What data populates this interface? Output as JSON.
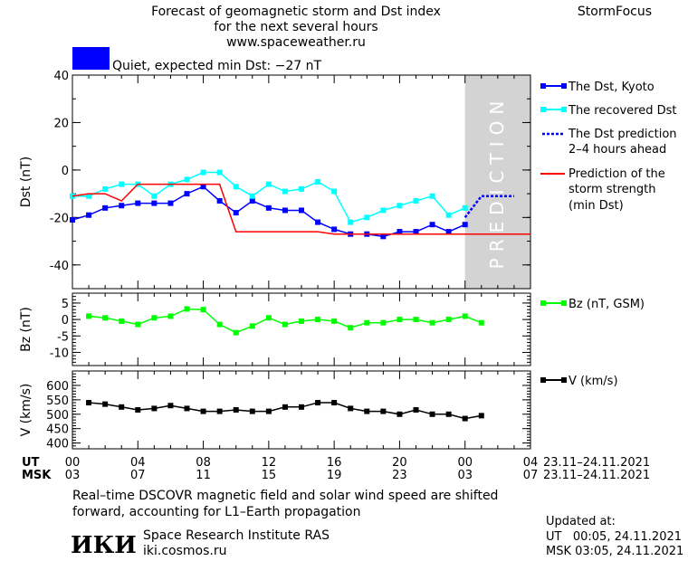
{
  "header": {
    "title_lines": [
      "Forecast of geomagnetic storm and Dst index",
      "for the next several hours",
      "www.spaceweather.ru"
    ],
    "brand": "StormFocus",
    "status_text": "Quiet, expected min Dst: −27 nT",
    "status_color": "#0000ff"
  },
  "legend": {
    "dst_kyoto": "The Dst, Kyoto",
    "dst_recovered": "The recovered Dst",
    "dst_prediction_l1": "The Dst prediction",
    "dst_prediction_l2": "2–4 hours ahead",
    "storm_l1": "Prediction of the",
    "storm_l2": "storm strength",
    "storm_l3": "(min Dst)",
    "bz": "Bz (nT, GSM)",
    "v": "V (km/s)"
  },
  "xaxis": {
    "ut_label": "UT",
    "msk_label": "MSK",
    "ut_ticks": [
      "00",
      "04",
      "08",
      "12",
      "16",
      "20",
      "00",
      "04"
    ],
    "msk_ticks": [
      "03",
      "07",
      "11",
      "15",
      "19",
      "23",
      "03",
      "07"
    ],
    "ut_range": "23.11–24.11.2021",
    "msk_range": "23.11–24.11.2021"
  },
  "footer": {
    "note_l1": "Real–time DSCOVR magnetic field and solar wind speed are shifted",
    "note_l2": "forward, accounting for L1–Earth propagation",
    "logo_text": "ИКИ",
    "institute": "Space Research Institute RAS",
    "site": "iki.cosmos.ru",
    "updated_label": "Updated at:",
    "updated_ut": "UT   00:05, 24.11.2021",
    "updated_msk": "MSK 03:05, 24.11.2021"
  },
  "prediction_label": "PREDICTION",
  "colors": {
    "dst_kyoto": "#0000ff",
    "dst_recovered": "#00ffff",
    "dst_prediction": "#0000ff",
    "storm_strength": "#ff0000",
    "bz": "#00ff00",
    "v": "#000000",
    "prediction_band": "#d3d3d3"
  },
  "chart_data": [
    {
      "type": "line",
      "title": "Forecast of geomagnetic storm and Dst index",
      "ylabel": "Dst (nT)",
      "xlabel": "UT",
      "xlim": [
        0,
        28
      ],
      "ylim": [
        -50,
        40
      ],
      "yticks": [
        40,
        20,
        0,
        -20,
        -40
      ],
      "prediction_window_hours": [
        24,
        28
      ],
      "series": [
        {
          "name": "The Dst, Kyoto",
          "x": [
            0,
            1,
            2,
            3,
            4,
            5,
            6,
            7,
            8,
            9,
            10,
            11,
            12,
            13,
            14,
            15,
            16,
            17,
            18,
            19,
            20,
            21,
            22,
            23,
            24
          ],
          "values": [
            -21,
            -19,
            -16,
            -15,
            -14,
            -14,
            -14,
            -10,
            -7,
            -13,
            -18,
            -13,
            -16,
            -17,
            -17,
            -22,
            -25,
            -27,
            -27,
            -28,
            -26,
            -26,
            -23,
            -26,
            -23
          ]
        },
        {
          "name": "The recovered Dst",
          "x": [
            0,
            1,
            2,
            3,
            4,
            5,
            6,
            7,
            8,
            9,
            10,
            11,
            12,
            13,
            14,
            15,
            16,
            17,
            18,
            19,
            20,
            21,
            22,
            23,
            24
          ],
          "values": [
            -11,
            -11,
            -8,
            -6,
            -6,
            -11,
            -6,
            -4,
            -1,
            -1,
            -7,
            -11,
            -6,
            -9,
            -8,
            -5,
            -9,
            -22,
            -20,
            -17,
            -15,
            -13,
            -11,
            -19,
            -16
          ]
        },
        {
          "name": "The Dst prediction 2–4 hours ahead",
          "x": [
            24,
            25,
            27
          ],
          "values": [
            -20,
            -11,
            -11
          ]
        },
        {
          "name": "Prediction of the storm strength (min Dst)",
          "x": [
            0,
            1,
            2,
            3,
            4,
            5,
            6,
            7,
            8,
            9,
            10,
            11,
            12,
            13,
            14,
            15,
            16,
            17,
            18,
            19,
            20,
            21,
            22,
            23,
            24,
            25,
            26,
            27,
            28
          ],
          "values": [
            -11,
            -10,
            -10,
            -13,
            -6,
            -6,
            -6,
            -6,
            -6,
            -6,
            -26,
            -26,
            -26,
            -26,
            -26,
            -26,
            -27,
            -27,
            -27,
            -27,
            -27,
            -27,
            -27,
            -27,
            -27,
            -27,
            -27,
            -27,
            -27
          ]
        }
      ]
    },
    {
      "type": "line",
      "ylabel": "Bz (nT)",
      "xlim": [
        0,
        28
      ],
      "ylim": [
        -14,
        8
      ],
      "yticks": [
        5,
        0,
        -5,
        -10
      ],
      "series": [
        {
          "name": "Bz (nT, GSM)",
          "x": [
            1,
            2,
            3,
            4,
            5,
            6,
            7,
            8,
            9,
            10,
            11,
            12,
            13,
            14,
            15,
            16,
            17,
            18,
            19,
            20,
            21,
            22,
            23,
            24,
            25
          ],
          "values": [
            1,
            0.5,
            -0.5,
            -1.5,
            0.5,
            1,
            3.2,
            3,
            -1.5,
            -4,
            -2,
            0.5,
            -1.5,
            -0.5,
            0,
            -0.5,
            -2.5,
            -1,
            -1,
            0,
            0,
            -1,
            0,
            1,
            -1
          ]
        }
      ]
    },
    {
      "type": "line",
      "ylabel": "V (km/s)",
      "xlim": [
        0,
        28
      ],
      "ylim": [
        380,
        650
      ],
      "yticks": [
        600,
        550,
        500,
        450,
        400
      ],
      "series": [
        {
          "name": "V (km/s)",
          "x": [
            1,
            2,
            3,
            4,
            5,
            6,
            7,
            8,
            9,
            10,
            11,
            12,
            13,
            14,
            15,
            16,
            17,
            18,
            19,
            20,
            21,
            22,
            23,
            24,
            25
          ],
          "values": [
            540,
            535,
            525,
            515,
            520,
            530,
            520,
            510,
            510,
            515,
            510,
            510,
            525,
            525,
            540,
            540,
            520,
            510,
            510,
            500,
            515,
            500,
            500,
            485,
            495
          ]
        }
      ]
    }
  ]
}
